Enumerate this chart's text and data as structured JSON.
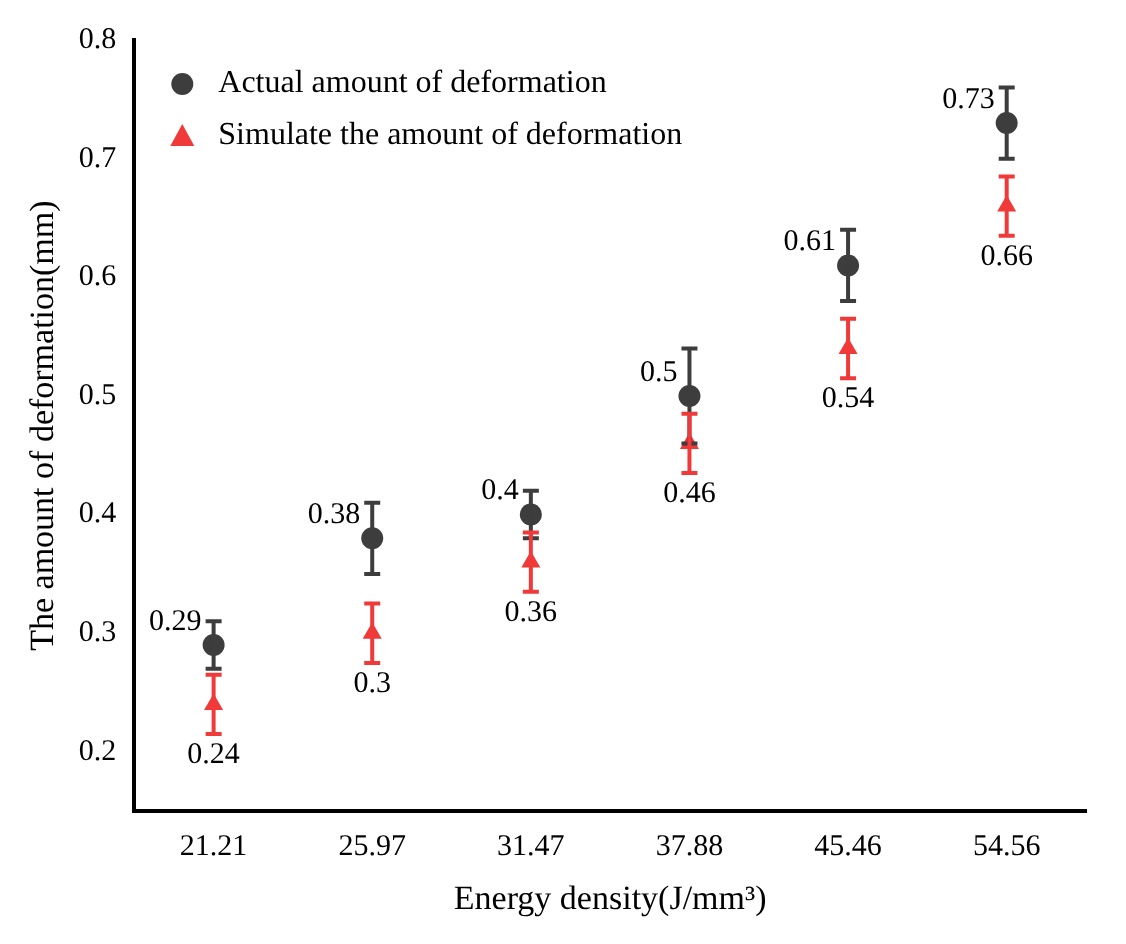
{
  "chart_data": {
    "type": "scatter",
    "xlabel": "Energy density(J/mm³)",
    "ylabel": "The amount of deformation(mm)",
    "categories": [
      "21.21",
      "25.97",
      "31.47",
      "37.88",
      "45.46",
      "54.56"
    ],
    "series": [
      {
        "name": "Actual amount of deformation",
        "color": "#3d3d3d",
        "marker": "circle",
        "values": [
          0.29,
          0.38,
          0.4,
          0.5,
          0.61,
          0.73
        ],
        "errors": [
          0.02,
          0.03,
          0.02,
          0.04,
          0.03,
          0.03
        ]
      },
      {
        "name": "Simulate the amount of deformation",
        "color": "#f03a3a",
        "marker": "triangle",
        "values": [
          0.24,
          0.3,
          0.36,
          0.46,
          0.54,
          0.66
        ],
        "errors": [
          0.025,
          0.025,
          0.025,
          0.025,
          0.025,
          0.025
        ]
      }
    ],
    "ylim": [
      0.15,
      0.8
    ],
    "yticks": [
      0.2,
      0.3,
      0.4,
      0.5,
      0.6,
      0.7,
      0.8
    ],
    "grid": false,
    "legend": "top left",
    "data_labels": true
  }
}
